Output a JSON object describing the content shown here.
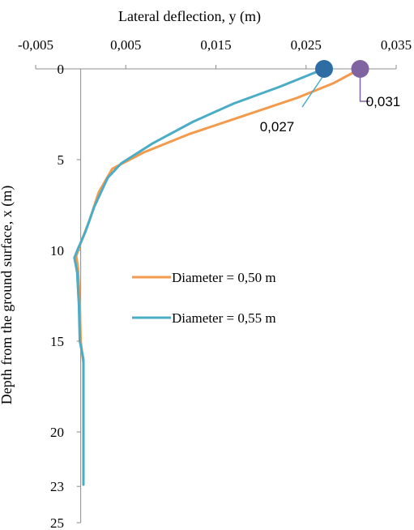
{
  "chart_data": {
    "type": "line",
    "xlabel": "Lateral deflection, y (m)",
    "ylabel": "Depth from the ground surface, x (m)",
    "xlim": [
      -0.005,
      0.035
    ],
    "ylim": [
      0,
      25
    ],
    "x_ticks": [
      "-0,005",
      "0,005",
      "0,015",
      "0,025",
      "0,035"
    ],
    "y_ticks": [
      "0",
      "5",
      "10",
      "15",
      "20",
      "23",
      "25"
    ],
    "x_axis_position": "top",
    "y_axis_reversed": true,
    "grid": false,
    "legend_position": "center-right",
    "series": [
      {
        "name": "Diameter = 0,50 m",
        "color": "#F39A4C",
        "points": [
          [
            0.031,
            0
          ],
          [
            0.028,
            0.8
          ],
          [
            0.024,
            1.6
          ],
          [
            0.018,
            2.6
          ],
          [
            0.012,
            3.6
          ],
          [
            0.007,
            4.6
          ],
          [
            0.0035,
            5.5
          ],
          [
            0.002,
            6.8
          ],
          [
            0.001,
            8.3
          ],
          [
            0.0,
            9.6
          ],
          [
            -0.0005,
            10.3
          ],
          [
            -0.0003,
            11.0
          ],
          [
            -0.0001,
            13.0
          ],
          [
            0.0,
            15.0
          ],
          [
            0.0003,
            16.2
          ],
          [
            0.0003,
            18.0
          ],
          [
            0.0003,
            20.0
          ],
          [
            0.0003,
            22.9
          ]
        ]
      },
      {
        "name": "Diameter = 0,55 m",
        "color": "#4BACC6",
        "points": [
          [
            0.027,
            0
          ],
          [
            0.022,
            1.0
          ],
          [
            0.017,
            1.9
          ],
          [
            0.0125,
            2.9
          ],
          [
            0.008,
            4.1
          ],
          [
            0.0045,
            5.2
          ],
          [
            0.003,
            6.0
          ],
          [
            0.0015,
            7.6
          ],
          [
            0.0005,
            9.0
          ],
          [
            -0.0003,
            9.9
          ],
          [
            -0.0007,
            10.4
          ],
          [
            -0.0004,
            11.2
          ],
          [
            -0.0002,
            13.0
          ],
          [
            -0.0001,
            15.0
          ],
          [
            0.0003,
            16.0
          ],
          [
            0.0003,
            18.0
          ],
          [
            0.0003,
            20.0
          ],
          [
            0.0003,
            22.9
          ]
        ]
      }
    ],
    "annotations": [
      {
        "label": "0,027",
        "x": 0.027,
        "y": 0,
        "marker_color": "#2E6DA4",
        "leader_color": "#4BACC6"
      },
      {
        "label": "0,031",
        "x": 0.031,
        "y": 0,
        "marker_color": "#8064A2",
        "leader_color": "#8064A2"
      }
    ]
  }
}
